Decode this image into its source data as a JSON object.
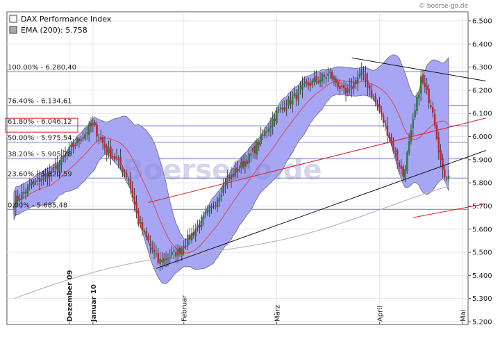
{
  "source_label": "© boerse-go.de",
  "watermark": "BoerseGo.de",
  "legend": [
    {
      "label": "DAX Performance Index",
      "swatch": "#ffffff"
    },
    {
      "label": "EMA (200): 5.758",
      "swatch": "#a9a9a9"
    }
  ],
  "colors": {
    "bollinger_fill": "#a6a6f4",
    "bollinger_edge": "#7a7a90",
    "fib_line": "#6e78c8",
    "sma": "#dd4455",
    "ema": "#b8b8b8",
    "up_candle": "#2f7a3a",
    "down_candle": "#c8222a",
    "trend_black": "#111111",
    "trend_red": "#dd1f26",
    "highlight_box": "#cc2222"
  },
  "chart_data": {
    "type": "candlestick",
    "y_ticks": [
      "6.500",
      "6.400",
      "6.300",
      "6.200",
      "6.100",
      "6.000",
      "5.900",
      "5.800",
      "5.700",
      "5.600",
      "5.500",
      "5.400",
      "5.300",
      "5.200"
    ],
    "ylim": [
      5200,
      6520
    ],
    "x_months": [
      {
        "label": "Dezember 09",
        "bold": true,
        "day": 28
      },
      {
        "label": "Januar 10",
        "bold": true,
        "day": 40
      },
      {
        "label": "Februar",
        "bold": false,
        "day": 86
      },
      {
        "label": "März",
        "bold": false,
        "day": 133
      },
      {
        "label": "April",
        "bold": false,
        "day": 185
      },
      {
        "label": "Mai",
        "bold": false,
        "day": 227
      }
    ],
    "fib_levels": [
      {
        "label": "100.00% - 6.280,40",
        "value": 6280.4,
        "highlight": false
      },
      {
        "label": "76.40% - 6.134,61",
        "value": 6134.61,
        "highlight": false
      },
      {
        "label": "61.80% - 6.046,12",
        "value": 6046.12,
        "highlight": true
      },
      {
        "label": "50.00% - 5.975,54",
        "value": 5975.54,
        "highlight": false
      },
      {
        "label": "38.20% - 5.905,78",
        "value": 5905.78,
        "highlight": false
      },
      {
        "label": "23.60% - 5.820,59",
        "value": 5820.59,
        "highlight": false
      },
      {
        "label": "0.00% - 5.685,48",
        "value": 5685.48,
        "highlight": false
      }
    ],
    "anchors": [
      {
        "d": 0,
        "c": 5720
      },
      {
        "d": 10,
        "c": 5800
      },
      {
        "d": 20,
        "c": 5850
      },
      {
        "d": 30,
        "c": 5960
      },
      {
        "d": 40,
        "c": 6050
      },
      {
        "d": 47,
        "c": 5940
      },
      {
        "d": 52,
        "c": 5900
      },
      {
        "d": 58,
        "c": 5820
      },
      {
        "d": 63,
        "c": 5630
      },
      {
        "d": 73,
        "c": 5460
      },
      {
        "d": 83,
        "c": 5500
      },
      {
        "d": 92,
        "c": 5600
      },
      {
        "d": 100,
        "c": 5690
      },
      {
        "d": 107,
        "c": 5800
      },
      {
        "d": 120,
        "c": 5920
      },
      {
        "d": 133,
        "c": 6100
      },
      {
        "d": 148,
        "c": 6220
      },
      {
        "d": 160,
        "c": 6270
      },
      {
        "d": 168,
        "c": 6180
      },
      {
        "d": 176,
        "c": 6280
      },
      {
        "d": 184,
        "c": 6130
      },
      {
        "d": 191,
        "c": 5980
      },
      {
        "d": 197,
        "c": 5830
      },
      {
        "d": 201,
        "c": 6010
      },
      {
        "d": 206,
        "c": 6250
      },
      {
        "d": 212,
        "c": 6120
      },
      {
        "d": 217,
        "c": 5840
      },
      {
        "d": 220,
        "c": 5830
      }
    ],
    "trendlines": [
      {
        "color": "trend_black",
        "from": {
          "d": 72,
          "v": 5430
        },
        "to": {
          "d": 229,
          "v": 5940
        }
      },
      {
        "color": "trend_black",
        "from": {
          "d": 171,
          "v": 6340
        },
        "to": {
          "d": 229,
          "v": 6240
        }
      },
      {
        "color": "trend_red",
        "from": {
          "d": 68,
          "v": 5715
        },
        "to": {
          "d": 229,
          "v": 6080
        }
      },
      {
        "color": "trend_red",
        "from": {
          "d": 202,
          "v": 5650
        },
        "to": {
          "d": 229,
          "v": 5710
        }
      }
    ]
  }
}
